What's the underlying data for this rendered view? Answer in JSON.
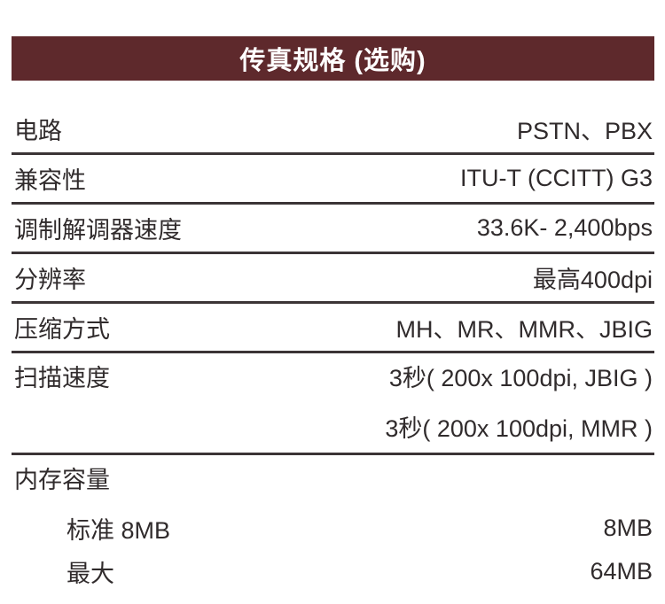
{
  "header": {
    "title": "传真规格 (选购)",
    "bg_color": "#5e292c",
    "text_color": "#ffffff"
  },
  "table": {
    "divider_color": "#3b3436",
    "text_color": "#302b2c",
    "rows": [
      {
        "label": "电路",
        "value": "PSTN、PBX"
      },
      {
        "label": "兼容性",
        "value": "ITU-T (CCITT) G3"
      },
      {
        "label": "调制解调器速度",
        "value": "33.6K- 2,400bps"
      },
      {
        "label": "分辨率",
        "value": "最高400dpi"
      },
      {
        "label": "压缩方式",
        "value": "MH、MR、MMR、JBIG"
      },
      {
        "label": "扫描速度",
        "values": [
          "3秒( 200x 100dpi, JBIG )",
          "3秒( 200x 100dpi, MMR )"
        ]
      },
      {
        "label": "内存容量",
        "value": ""
      },
      {
        "label": "标准 8MB",
        "value": "8MB"
      },
      {
        "label": "最大",
        "value": "64MB"
      }
    ]
  }
}
